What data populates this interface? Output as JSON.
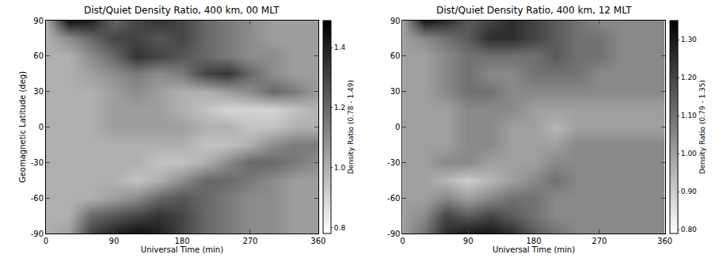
{
  "chart_data": [
    {
      "type": "heatmap",
      "title": "Dist/Quiet Density Ratio, 400 km, 00 MLT",
      "xlabel": "Universal Time (min)",
      "ylabel": "Geomagnetic Latitude (deg)",
      "grid": false,
      "x": [
        0,
        30,
        60,
        90,
        120,
        150,
        180,
        210,
        240,
        270,
        300,
        330,
        360
      ],
      "y": [
        -90,
        -75,
        -60,
        -45,
        -30,
        -15,
        0,
        15,
        30,
        45,
        60,
        75,
        90
      ],
      "z": [
        [
          1.0,
          1.05,
          1.3,
          1.4,
          1.45,
          1.4,
          1.3,
          1.2,
          1.15,
          1.1,
          1.1,
          1.05,
          1.05
        ],
        [
          1.0,
          1.0,
          1.2,
          1.25,
          1.3,
          1.35,
          1.3,
          1.2,
          1.15,
          1.1,
          1.1,
          1.05,
          1.05
        ],
        [
          1.0,
          1.0,
          1.0,
          1.05,
          1.1,
          1.2,
          1.25,
          1.2,
          1.15,
          1.1,
          1.1,
          1.05,
          1.05
        ],
        [
          1.0,
          1.0,
          1.0,
          1.0,
          0.95,
          1.0,
          1.1,
          1.2,
          1.2,
          1.15,
          1.1,
          1.05,
          1.05
        ],
        [
          1.0,
          1.0,
          1.0,
          1.0,
          1.0,
          0.95,
          0.95,
          1.0,
          1.1,
          1.2,
          1.2,
          1.15,
          1.1
        ],
        [
          1.0,
          1.0,
          1.0,
          1.0,
          1.0,
          1.0,
          1.0,
          0.95,
          0.95,
          1.0,
          1.1,
          1.15,
          1.15
        ],
        [
          1.0,
          1.0,
          1.0,
          1.05,
          1.05,
          1.05,
          1.05,
          1.0,
          1.0,
          0.95,
          0.95,
          1.0,
          1.0
        ],
        [
          1.0,
          1.0,
          1.0,
          1.05,
          1.05,
          1.05,
          1.0,
          0.95,
          0.9,
          0.9,
          0.9,
          0.95,
          1.0
        ],
        [
          1.0,
          1.0,
          1.0,
          1.05,
          1.1,
          1.05,
          1.0,
          1.0,
          1.05,
          1.1,
          1.2,
          1.15,
          1.05
        ],
        [
          1.0,
          1.0,
          1.05,
          1.1,
          1.15,
          1.1,
          1.15,
          1.3,
          1.35,
          1.2,
          1.1,
          1.05,
          1.05
        ],
        [
          1.0,
          1.0,
          1.1,
          1.2,
          1.35,
          1.3,
          1.25,
          1.2,
          1.15,
          1.1,
          1.1,
          1.05,
          1.05
        ],
        [
          1.0,
          1.1,
          1.2,
          1.3,
          1.3,
          1.25,
          1.3,
          1.2,
          1.15,
          1.1,
          1.05,
          1.05,
          1.05
        ],
        [
          1.0,
          1.45,
          1.4,
          1.2,
          1.3,
          1.35,
          1.3,
          1.2,
          1.15,
          1.1,
          1.05,
          1.05,
          1.05
        ]
      ],
      "xlim": [
        0,
        360
      ],
      "xticks": [
        0,
        90,
        180,
        270,
        360
      ],
      "ylim": [
        -90,
        90
      ],
      "yticks": [
        -90,
        -60,
        -30,
        0,
        30,
        60,
        90
      ],
      "colorbar": {
        "title": "Density Ratio (0.78 - 1.49)",
        "range": [
          0.78,
          1.49
        ],
        "ticks": [
          0.8,
          {
            "value": 1,
            "label": "1.0"
          },
          1.2,
          1.4
        ]
      }
    },
    {
      "type": "heatmap",
      "title": "Dist/Quiet Density Ratio, 400 km, 12 MLT",
      "xlabel": "Universal Time (min)",
      "grid": false,
      "x": [
        0,
        30,
        60,
        90,
        120,
        150,
        180,
        210,
        240,
        270,
        300,
        330,
        360
      ],
      "y": [
        -90,
        -75,
        -60,
        -45,
        -30,
        -15,
        0,
        15,
        30,
        45,
        60,
        75,
        90
      ],
      "z": [
        [
          1.0,
          1.1,
          1.25,
          1.3,
          1.3,
          1.25,
          1.15,
          1.1,
          1.05,
          1.05,
          1.05,
          1.05,
          1.05
        ],
        [
          1.0,
          1.05,
          1.2,
          1.15,
          1.2,
          1.15,
          1.1,
          1.05,
          1.05,
          1.05,
          1.05,
          1.05,
          1.05
        ],
        [
          1.0,
          1.0,
          1.05,
          1.0,
          1.05,
          1.1,
          1.1,
          1.05,
          1.05,
          1.05,
          1.05,
          1.05,
          1.05
        ],
        [
          1.0,
          1.0,
          0.95,
          0.9,
          0.95,
          1.0,
          1.05,
          1.1,
          1.05,
          1.05,
          1.05,
          1.05,
          1.05
        ],
        [
          1.0,
          1.0,
          1.05,
          1.05,
          1.0,
          1.0,
          1.0,
          1.05,
          1.05,
          1.05,
          1.05,
          1.05,
          1.05
        ],
        [
          1.0,
          1.0,
          1.0,
          1.05,
          1.05,
          1.0,
          1.0,
          1.0,
          1.05,
          1.05,
          1.05,
          1.05,
          1.05
        ],
        [
          1.0,
          1.0,
          1.0,
          1.05,
          1.05,
          1.0,
          1.0,
          0.95,
          1.0,
          1.0,
          1.0,
          1.0,
          1.0
        ],
        [
          1.0,
          1.0,
          1.0,
          1.05,
          1.05,
          1.05,
          1.0,
          1.0,
          1.0,
          1.0,
          1.0,
          1.0,
          1.0
        ],
        [
          1.0,
          1.0,
          1.05,
          1.1,
          1.1,
          1.05,
          1.05,
          1.05,
          1.05,
          1.05,
          1.05,
          1.05,
          1.05
        ],
        [
          1.0,
          1.0,
          1.05,
          1.1,
          1.05,
          1.05,
          1.1,
          1.1,
          1.1,
          1.05,
          1.05,
          1.05,
          1.05
        ],
        [
          1.0,
          1.0,
          1.05,
          1.1,
          1.1,
          1.1,
          1.1,
          1.15,
          1.1,
          1.1,
          1.05,
          1.05,
          1.05
        ],
        [
          1.0,
          1.05,
          1.1,
          1.15,
          1.25,
          1.25,
          1.2,
          1.15,
          1.1,
          1.1,
          1.05,
          1.05,
          1.05
        ],
        [
          1.0,
          1.3,
          1.25,
          1.15,
          1.2,
          1.25,
          1.2,
          1.15,
          1.1,
          1.05,
          1.05,
          1.05,
          1.05
        ]
      ],
      "xlim": [
        0,
        360
      ],
      "xticks": [
        0,
        90,
        180,
        270,
        360
      ],
      "ylim": [
        -90,
        90
      ],
      "yticks": [
        -90,
        -60,
        -30,
        0,
        30,
        60,
        90
      ],
      "colorbar": {
        "title": "Density Ratio (0.79 - 1.35)",
        "range": [
          0.79,
          1.35
        ],
        "ticks": [
          {
            "value": 0.8,
            "label": "0.80"
          },
          {
            "value": 0.9,
            "label": "0.90"
          },
          {
            "value": 1,
            "label": "1.00"
          },
          {
            "value": 1.1,
            "label": "1.10"
          },
          {
            "value": 1.2,
            "label": "1.20"
          },
          {
            "value": 1.3,
            "label": "1.30"
          }
        ]
      }
    }
  ]
}
